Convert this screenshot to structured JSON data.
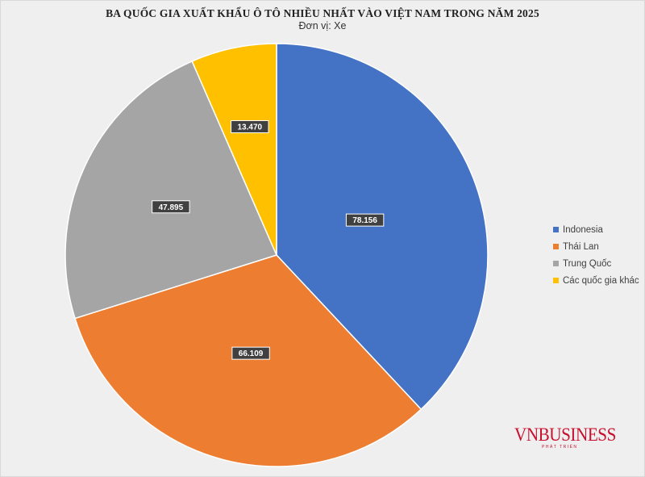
{
  "chart_data": {
    "type": "pie",
    "title": "BA QUỐC GIA XUẤT KHẨU Ô TÔ NHIỀU NHẤT VÀO VIỆT NAM TRONG NĂM 2025",
    "subtitle": "Đơn vị: Xe",
    "categories": [
      "Indonesia",
      "Thái Lan",
      "Trung Quốc",
      "Các quốc gia khác"
    ],
    "values": [
      78156,
      66109,
      47895,
      13470
    ],
    "data_labels": [
      "78.156",
      "66.109",
      "47.895",
      "13.470"
    ],
    "colors": [
      "#4472c4",
      "#ed7d31",
      "#a5a5a5",
      "#ffc000"
    ],
    "legend_position": "right"
  },
  "watermark": {
    "text": "VNBUSINESS",
    "subtext": "PHÁT TRIỂN"
  }
}
